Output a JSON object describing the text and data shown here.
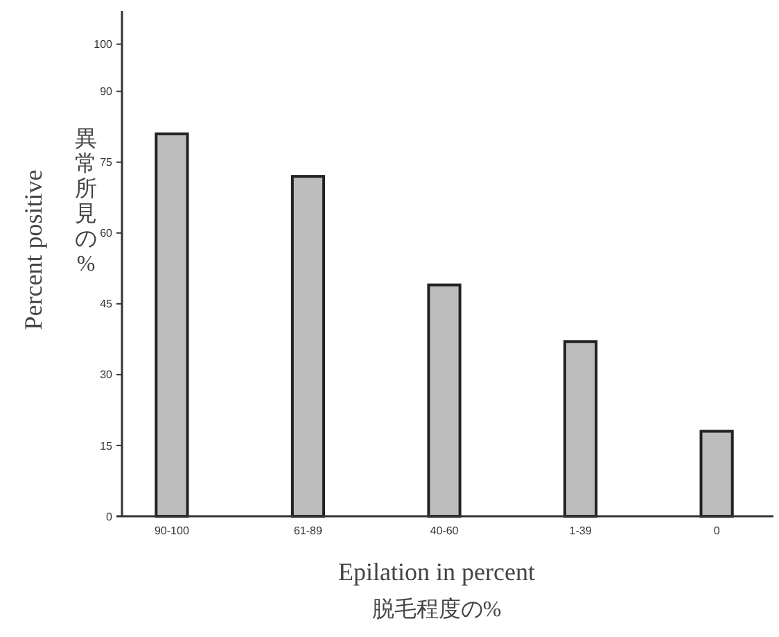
{
  "chart_data": {
    "type": "bar",
    "xlabel": "Epilation in percent\n脱毛程度の%",
    "ylabel": "Percent positive\n異常所見の%",
    "categories": [
      "90-100",
      "61-89",
      "40-60",
      "1-39",
      "0"
    ],
    "values": [
      81,
      72,
      49,
      37,
      18
    ],
    "color": "#bdbdbd",
    "ylim": [
      0,
      107
    ],
    "yticks": [
      0,
      15,
      30,
      45,
      60,
      75,
      90,
      100
    ],
    "grid": false
  }
}
